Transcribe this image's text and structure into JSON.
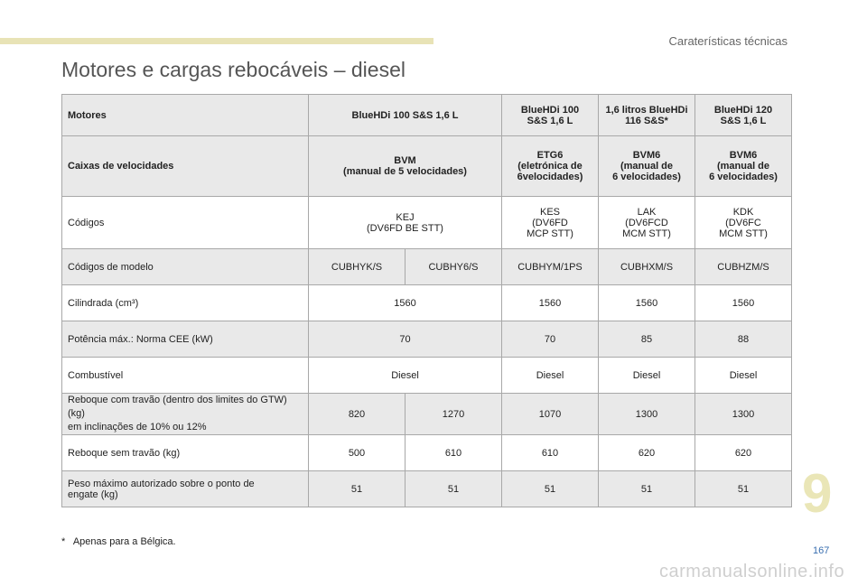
{
  "header": {
    "section": "Caraterísticas técnicas"
  },
  "title": "Motores e cargas rebocáveis – diesel",
  "table": {
    "motors": {
      "label": "Motores",
      "a": "BlueHDi 100 S&S 1,6 L",
      "b": "BlueHDi 100\nS&S 1,6 L",
      "c": "1,6 litros BlueHDi\n116 S&S*",
      "d": "BlueHDi 120\nS&S 1,6 L"
    },
    "gearboxes": {
      "label": "Caixas de velocidades",
      "a": "BVM\n(manual de 5 velocidades)",
      "b": "ETG6\n(eletrónica de\n6velocidades)",
      "c": "BVM6\n(manual de\n6 velocidades)",
      "d": "BVM6\n(manual de\n6 velocidades)"
    },
    "codes": {
      "label": "Códigos",
      "a": "KEJ\n(DV6FD BE STT)",
      "b": "KES\n(DV6FD\nMCP STT)",
      "c": "LAK\n(DV6FCD\nMCM STT)",
      "d": "KDK\n(DV6FC\nMCM STT)"
    },
    "model_codes": {
      "label": "Códigos de modelo",
      "values": [
        "CUBHYK/S",
        "CUBHY6/S",
        "CUBHYM/1PS",
        "CUBHXM/S",
        "CUBHZM/S"
      ]
    },
    "displacement": {
      "label": "Cilindrada (cm³)",
      "values": [
        "1560",
        "1560",
        "1560",
        "1560"
      ]
    },
    "power": {
      "label": "Potência máx.: Norma CEE (kW)",
      "values": [
        "70",
        "70",
        "85",
        "88"
      ]
    },
    "fuel": {
      "label": "Combustível",
      "values": [
        "Diesel",
        "Diesel",
        "Diesel",
        "Diesel"
      ]
    },
    "braked_trailer": {
      "label": "Reboque com travão (dentro dos limites do GTW) (kg)\nem inclinações de 10% ou 12%",
      "values": [
        "820",
        "1270",
        "1070",
        "1300",
        "1300"
      ]
    },
    "unbraked_trailer": {
      "label": "Reboque sem travão (kg)",
      "values": [
        "500",
        "610",
        "610",
        "620",
        "620"
      ]
    },
    "nose_weight": {
      "label": "Peso máximo autorizado sobre o ponto de\nengate (kg)",
      "values": [
        "51",
        "51",
        "51",
        "51",
        "51"
      ]
    }
  },
  "footnote": {
    "mark": "*",
    "text": "Apenas para a Bélgica."
  },
  "chapter_number": "9",
  "page_number": "167",
  "watermark": "carmanualsonline.info"
}
